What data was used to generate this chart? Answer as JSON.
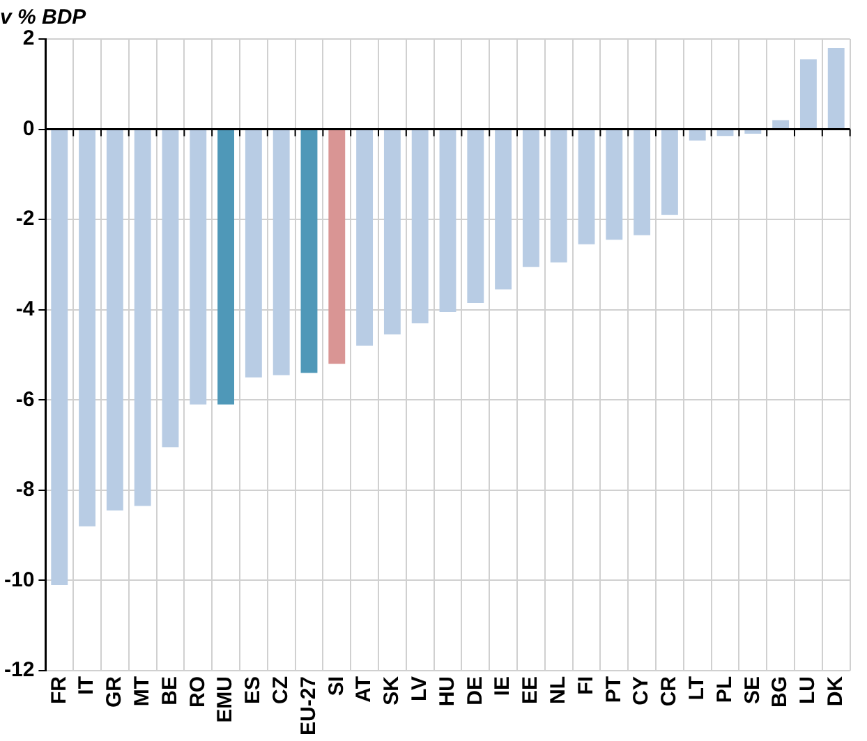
{
  "chart_data": {
    "type": "bar",
    "ylabel": "v % BDP",
    "categories": [
      "FR",
      "IT",
      "GR",
      "MT",
      "BE",
      "RO",
      "EMU",
      "ES",
      "CZ",
      "EU-27",
      "SI",
      "AT",
      "SK",
      "LV",
      "HU",
      "DE",
      "IE",
      "EE",
      "NL",
      "FI",
      "PT",
      "CY",
      "CR",
      "LT",
      "PL",
      "SE",
      "BG",
      "LU",
      "DK"
    ],
    "values": [
      -10.1,
      -8.8,
      -8.45,
      -8.35,
      -7.05,
      -6.1,
      -6.1,
      -5.5,
      -5.45,
      -5.4,
      -5.2,
      -4.8,
      -4.55,
      -4.3,
      -4.05,
      -3.85,
      -3.55,
      -3.05,
      -2.95,
      -2.55,
      -2.45,
      -2.35,
      -1.9,
      -0.25,
      -0.15,
      -0.1,
      0.2,
      1.55,
      1.8
    ],
    "colors": [
      "#b8cce4",
      "#b8cce4",
      "#b8cce4",
      "#b8cce4",
      "#b8cce4",
      "#b8cce4",
      "#4f98b8",
      "#b8cce4",
      "#b8cce4",
      "#4f98b8",
      "#d99594",
      "#b8cce4",
      "#b8cce4",
      "#b8cce4",
      "#b8cce4",
      "#b8cce4",
      "#b8cce4",
      "#b8cce4",
      "#b8cce4",
      "#b8cce4",
      "#b8cce4",
      "#b8cce4",
      "#b8cce4",
      "#b8cce4",
      "#b8cce4",
      "#b8cce4",
      "#b8cce4",
      "#b8cce4",
      "#b8cce4"
    ],
    "ylim": [
      -12,
      2
    ],
    "yticks": [
      -12,
      -10,
      -8,
      -6,
      -4,
      -2,
      0,
      2
    ],
    "grid": true
  }
}
